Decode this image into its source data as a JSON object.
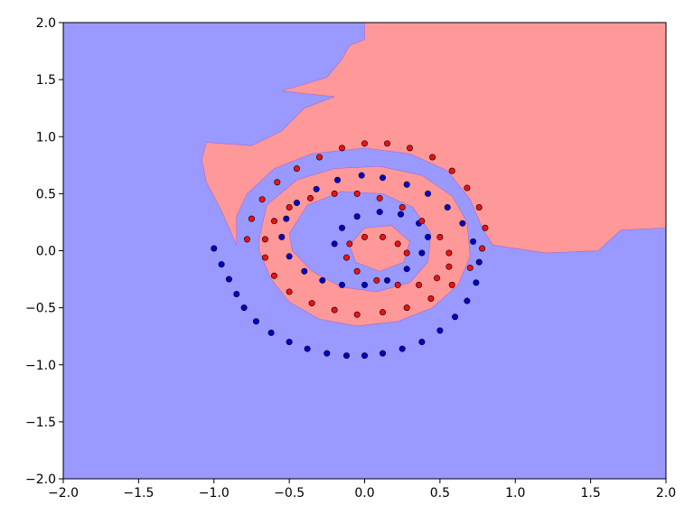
{
  "chart_data": {
    "type": "scatter",
    "subtype": "decision-boundary",
    "title": "",
    "xlabel": "",
    "ylabel": "",
    "xlim": [
      -2.0,
      2.0
    ],
    "ylim": [
      -2.0,
      2.0
    ],
    "x_ticks": [
      -2.0,
      -1.5,
      -1.0,
      -0.5,
      0.0,
      0.5,
      1.0,
      1.5,
      2.0
    ],
    "y_ticks": [
      -2.0,
      -1.5,
      -1.0,
      -0.5,
      0.0,
      0.5,
      1.0,
      1.5,
      2.0
    ],
    "x_tick_labels": [
      "−2.0",
      "−1.5",
      "−1.0",
      "−0.5",
      "0.0",
      "0.5",
      "1.0",
      "1.5",
      "2.0"
    ],
    "y_tick_labels": [
      "−2.0",
      "−1.5",
      "−1.0",
      "−0.5",
      "0.0",
      "0.5",
      "1.0",
      "1.5",
      "2.0"
    ],
    "grid": false,
    "legend": "none",
    "colors": {
      "region_class0": "#9999ff",
      "region_class1": "#ff9999",
      "point_class0": "#0000cc",
      "point_class1": "#ee1111",
      "point_edge": "#000000"
    },
    "series": [
      {
        "class": 0,
        "color": "#0000cc",
        "description_geometry": "outer-left spiral arm from (-1.0, 0.0) to bottom ring y≈-0.92, inner arm around (0.0, 0.25)",
        "x": [
          -1.0,
          -0.95,
          -0.9,
          -0.85,
          -0.8,
          -0.72,
          -0.62,
          -0.5,
          -0.38,
          -0.25,
          -0.12,
          0.0,
          0.12,
          0.25,
          0.38,
          0.5,
          0.6,
          0.68,
          0.74,
          0.76,
          0.72,
          0.65,
          0.55,
          0.42,
          0.28,
          0.12,
          -0.02,
          -0.18,
          -0.32,
          -0.45,
          -0.52,
          -0.55,
          -0.5,
          -0.4,
          -0.28,
          -0.15,
          0.0,
          0.15,
          0.28,
          0.38,
          0.42,
          0.36,
          0.24,
          0.1,
          -0.05,
          -0.15,
          -0.2
        ],
        "y": [
          0.02,
          -0.12,
          -0.25,
          -0.38,
          -0.5,
          -0.62,
          -0.72,
          -0.8,
          -0.86,
          -0.9,
          -0.92,
          -0.92,
          -0.9,
          -0.86,
          -0.8,
          -0.7,
          -0.58,
          -0.44,
          -0.28,
          -0.1,
          0.08,
          0.24,
          0.38,
          0.5,
          0.58,
          0.64,
          0.66,
          0.62,
          0.54,
          0.42,
          0.28,
          0.12,
          -0.05,
          -0.18,
          -0.26,
          -0.3,
          -0.3,
          -0.26,
          -0.16,
          -0.02,
          0.12,
          0.24,
          0.32,
          0.34,
          0.3,
          0.2,
          0.06
        ]
      },
      {
        "class": 1,
        "color": "#ee1111",
        "description_geometry": "outer ring top y≈0.95 winding inward to centre (0.2, 0.05)",
        "x": [
          -0.78,
          -0.75,
          -0.68,
          -0.58,
          -0.45,
          -0.3,
          -0.15,
          0.0,
          0.15,
          0.3,
          0.45,
          0.58,
          0.68,
          0.76,
          0.8,
          0.78,
          0.7,
          0.58,
          0.44,
          0.28,
          0.12,
          -0.05,
          -0.2,
          -0.35,
          -0.5,
          -0.6,
          -0.66,
          -0.66,
          -0.6,
          -0.5,
          -0.36,
          -0.2,
          -0.05,
          0.1,
          0.25,
          0.38,
          0.5,
          0.56,
          0.56,
          0.48,
          0.36,
          0.22,
          0.08,
          -0.05,
          -0.12,
          -0.1,
          0.0,
          0.12,
          0.22,
          0.28
        ],
        "y": [
          0.1,
          0.28,
          0.45,
          0.6,
          0.72,
          0.82,
          0.9,
          0.94,
          0.94,
          0.9,
          0.82,
          0.7,
          0.55,
          0.38,
          0.2,
          0.02,
          -0.15,
          -0.3,
          -0.42,
          -0.5,
          -0.54,
          -0.56,
          -0.52,
          -0.46,
          -0.36,
          -0.22,
          -0.06,
          0.1,
          0.26,
          0.38,
          0.46,
          0.5,
          0.5,
          0.46,
          0.38,
          0.26,
          0.12,
          -0.02,
          -0.14,
          -0.24,
          -0.3,
          -0.3,
          -0.26,
          -0.18,
          -0.06,
          0.06,
          0.12,
          0.12,
          0.06,
          -0.02
        ]
      }
    ]
  }
}
